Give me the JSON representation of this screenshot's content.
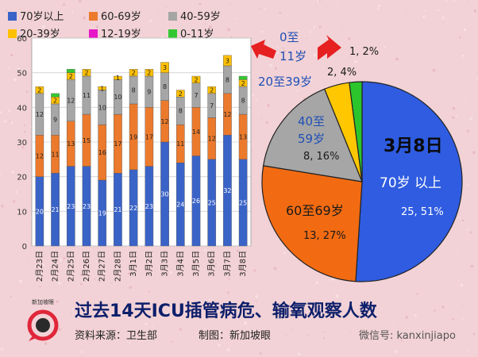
{
  "legend": [
    {
      "label": "70岁以上",
      "color": "#3a63c8"
    },
    {
      "label": "60-69岁",
      "color": "#ec7a2c"
    },
    {
      "label": "40-59岁",
      "color": "#a6a6a6"
    },
    {
      "label": "20-39岁",
      "color": "#ffc000"
    },
    {
      "label": "12-19岁",
      "color": "#e617c8"
    },
    {
      "label": "0-11岁",
      "color": "#33c832"
    }
  ],
  "chart_data": [
    {
      "type": "bar",
      "stacked": true,
      "categories": [
        "2月23日",
        "2月24日",
        "2月25日",
        "2月26日",
        "2月27日",
        "2月28日",
        "3月1日",
        "3月2日",
        "3月3日",
        "3月4日",
        "3月5日",
        "3月6日",
        "3月7日",
        "3月8日"
      ],
      "ylim": [
        0,
        60
      ],
      "yticks": [
        "0",
        "10",
        "20",
        "30",
        "40",
        "50",
        "60"
      ],
      "grid": true,
      "series": [
        {
          "name": "70岁以上",
          "color": "#3a63c8",
          "values": [
            20,
            21,
            23,
            23,
            19,
            21,
            22,
            23,
            30,
            24,
            26,
            25,
            32,
            25
          ]
        },
        {
          "name": "60-69岁",
          "color": "#ec7a2c",
          "values": [
            12,
            11,
            13,
            15,
            16,
            17,
            19,
            17,
            12,
            11,
            14,
            12,
            12,
            13
          ]
        },
        {
          "name": "40-59岁",
          "color": "#a6a6a6",
          "values": [
            12,
            9,
            12,
            11,
            10,
            10,
            8,
            9,
            8,
            8,
            7,
            7,
            8,
            8
          ]
        },
        {
          "name": "20-39岁",
          "color": "#ffc000",
          "values": [
            2,
            2,
            2,
            2,
            1,
            1,
            2,
            2,
            3,
            2,
            2,
            2,
            3,
            2
          ]
        },
        {
          "name": "12-19岁",
          "color": "#e617c8",
          "values": [
            0,
            0,
            0,
            0,
            0,
            0,
            0,
            0,
            0,
            0,
            0,
            0,
            0,
            0
          ]
        },
        {
          "name": "0-11岁",
          "color": "#33c832",
          "values": [
            0,
            1,
            1,
            0,
            0,
            0,
            0,
            0,
            0,
            0,
            0,
            0,
            0,
            1
          ]
        }
      ]
    },
    {
      "type": "pie",
      "title": "3月8日",
      "slices": [
        {
          "name": "70岁以上",
          "value": 25,
          "percent": 51,
          "color": "#2f5ce0",
          "label": "25, 51%"
        },
        {
          "name": "60-69岁",
          "value": 13,
          "percent": 27,
          "color": "#f26b12",
          "label": "13, 27%"
        },
        {
          "name": "40-59岁",
          "value": 8,
          "percent": 16,
          "color": "#a6a6a6",
          "label": "8, 16%"
        },
        {
          "name": "20-39岁",
          "value": 2,
          "percent": 4,
          "color": "#ffc700",
          "label": "2, 4%"
        },
        {
          "name": "0-11岁",
          "value": 1,
          "percent": 2,
          "color": "#2cc62c",
          "label": "1, 2%"
        }
      ]
    }
  ],
  "pie_labels": {
    "s70_name": "70岁 以上",
    "s60_name": "60至69岁",
    "s40_name_l1": "40至",
    "s40_name_l2": "59岁",
    "c011_l1": "0至",
    "c011_l2": "11岁",
    "c2039": "20至39岁"
  },
  "footer": {
    "title": "过去14天ICU插管病危、输氧观察人数",
    "source": "资料来源：卫生部",
    "credit": "制图：新加坡眼",
    "wechat": "微信号: kanxinjiapo",
    "logo_text": "新加坡眼"
  }
}
